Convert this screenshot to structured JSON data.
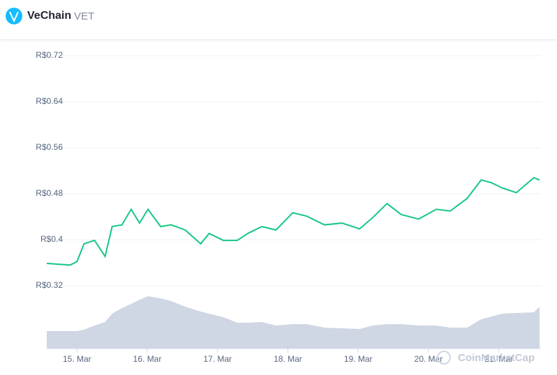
{
  "header": {
    "name": "VeChain",
    "symbol": "VET"
  },
  "chart_data": {
    "type": "line",
    "watermark": "CoinMarketCap",
    "x": [
      14.57,
      14.9,
      15,
      15.1,
      15.25,
      15.4,
      15.5,
      15.64,
      15.77,
      15.89,
      16.01,
      16.19,
      16.34,
      16.54,
      16.76,
      16.88,
      17.08,
      17.28,
      17.43,
      17.63,
      17.83,
      18.07,
      18.27,
      18.52,
      18.77,
      19.02,
      19.21,
      19.41,
      19.61,
      19.86,
      20.11,
      20.31,
      20.55,
      20.75,
      20.9,
      21.05,
      21.25,
      21.5,
      21.58
    ],
    "series": [
      {
        "color": "#16c784",
        "values": [
          0.359,
          0.356,
          0.362,
          0.393,
          0.399,
          0.371,
          0.423,
          0.426,
          0.453,
          0.429,
          0.453,
          0.423,
          0.426,
          0.417,
          0.393,
          0.411,
          0.399,
          0.399,
          0.411,
          0.423,
          0.417,
          0.447,
          0.441,
          0.426,
          0.429,
          0.419,
          0.439,
          0.463,
          0.444,
          0.436,
          0.453,
          0.45,
          0.472,
          0.504,
          0.499,
          0.49,
          0.482,
          0.508,
          0.504
        ]
      },
      {
        "color": "#cfd6e4",
        "axis": "y2",
        "values": [
          25,
          25,
          25,
          27,
          33,
          38,
          50,
          58,
          64,
          70,
          75,
          72,
          68,
          60,
          53,
          50,
          45,
          37,
          37,
          38,
          33,
          35,
          35,
          30,
          29,
          28,
          33,
          35,
          35,
          33,
          33,
          30,
          30,
          42,
          46,
          50,
          51,
          52,
          60
        ]
      }
    ],
    "xlim": [
      14.57,
      21.58
    ],
    "xticks": [
      {
        "value": 15,
        "label": "15. Mar"
      },
      {
        "value": 16,
        "label": "16. Mar"
      },
      {
        "value": 17,
        "label": "17. Mar"
      },
      {
        "value": 18,
        "label": "18. Mar"
      },
      {
        "value": 19,
        "label": "19. Mar"
      },
      {
        "value": 20,
        "label": "20. Mar"
      },
      {
        "value": 21,
        "label": "21. Mar"
      }
    ],
    "ylim": [
      0.32,
      0.72
    ],
    "yticks": [
      {
        "value": 0.32,
        "label": "R$0.32"
      },
      {
        "value": 0.4,
        "label": "R$0.4"
      },
      {
        "value": 0.48,
        "label": "R$0.48"
      },
      {
        "value": 0.56,
        "label": "R$0.56"
      },
      {
        "value": 0.64,
        "label": "R$0.64"
      },
      {
        "value": 0.72,
        "label": "R$0.72"
      }
    ],
    "y2lim": [
      0,
      100
    ],
    "grid": true
  }
}
